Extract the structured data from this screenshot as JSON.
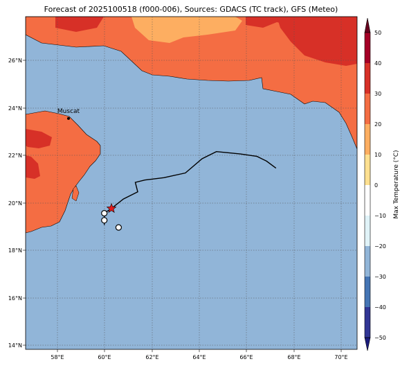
{
  "title": "Forecast of 2025100518 (f000-006), Sources: GDACS (TC track), GFS (Meteo)",
  "map": {
    "lon_range": [
      56.7,
      70.6
    ],
    "lat_range": [
      13.85,
      27.9
    ],
    "lon_ticks": [
      "58°E",
      "60°E",
      "62°E",
      "64°E",
      "66°E",
      "68°E",
      "70°E"
    ],
    "lat_ticks": [
      "14°N",
      "16°N",
      "18°N",
      "20°N",
      "22°N",
      "24°N",
      "26°N"
    ],
    "ocean_color": "#91b5d8",
    "land_color": "#f46d43",
    "city": {
      "name": "Muscat",
      "lon": 58.5,
      "lat": 23.6
    },
    "storm_position": {
      "lon": 60.3,
      "lat": 19.8
    },
    "track": [
      [
        67.2,
        21.5
      ],
      [
        66.8,
        21.8
      ],
      [
        66.4,
        22.0
      ],
      [
        65.7,
        22.1
      ],
      [
        64.7,
        22.2
      ],
      [
        64.1,
        21.9
      ],
      [
        63.4,
        21.3
      ],
      [
        62.5,
        21.1
      ],
      [
        61.7,
        21.0
      ],
      [
        61.3,
        20.9
      ],
      [
        61.4,
        20.5
      ],
      [
        60.8,
        20.2
      ],
      [
        60.3,
        19.8
      ],
      [
        60.0,
        19.6
      ],
      [
        60.0,
        19.3
      ],
      [
        60.0,
        19.1
      ]
    ],
    "track_points": [
      [
        60.0,
        19.6
      ],
      [
        60.0,
        19.3
      ],
      [
        60.6,
        19.0
      ]
    ]
  },
  "colorbar": {
    "label": "Max Temperature (°C)",
    "ticks": [
      "50",
      "40",
      "30",
      "20",
      "10",
      "0",
      "−10",
      "−20",
      "−30",
      "−40",
      "−50"
    ],
    "colors": [
      "#67001f",
      "#a50026",
      "#d73027",
      "#f46d43",
      "#fdae61",
      "#fee090",
      "#ffffff",
      "#e0f3f8",
      "#abd9e9",
      "#74add1",
      "#4575b4",
      "#313695",
      "#1b1c7c"
    ]
  }
}
